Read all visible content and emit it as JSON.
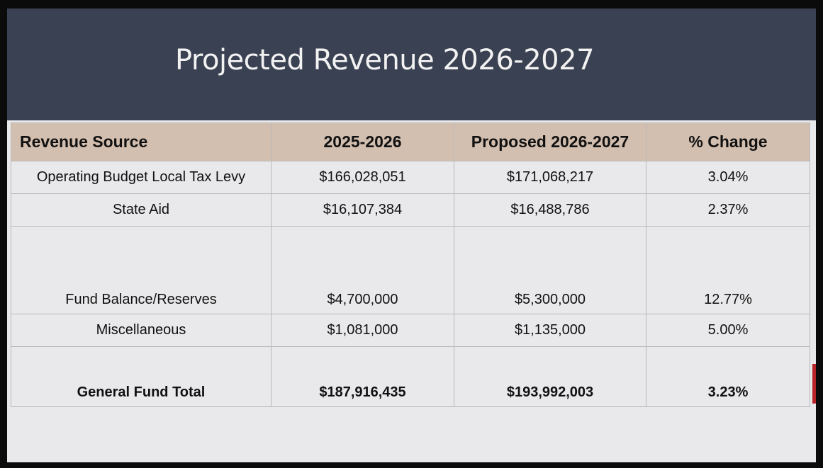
{
  "slide": {
    "title": "Projected Revenue 2026-2027"
  },
  "table": {
    "headers": [
      "Revenue Source",
      "2025-2026",
      "Proposed 2026-2027",
      "% Change"
    ],
    "rows": [
      [
        "Operating Budget Local Tax Levy",
        "$166,028,051",
        "$171,068,217",
        "3.04%"
      ],
      [
        "State Aid",
        "$16,107,384",
        "$16,488,786",
        "2.37%"
      ],
      [
        "Fund Balance/Reserves",
        "$4,700,000",
        "$5,300,000",
        "12.77%"
      ],
      [
        "Miscellaneous",
        "$1,081,000",
        "$1,135,000",
        "5.00%"
      ]
    ],
    "total": [
      "General Fund Total",
      "$187,916,435",
      "$193,992,003",
      "3.23%"
    ]
  },
  "colors": {
    "title_band": "#3a4152",
    "header_fill": "#d3bfaf",
    "slide_background": "#e9e9eb",
    "edge_accent": "#b8262c"
  }
}
